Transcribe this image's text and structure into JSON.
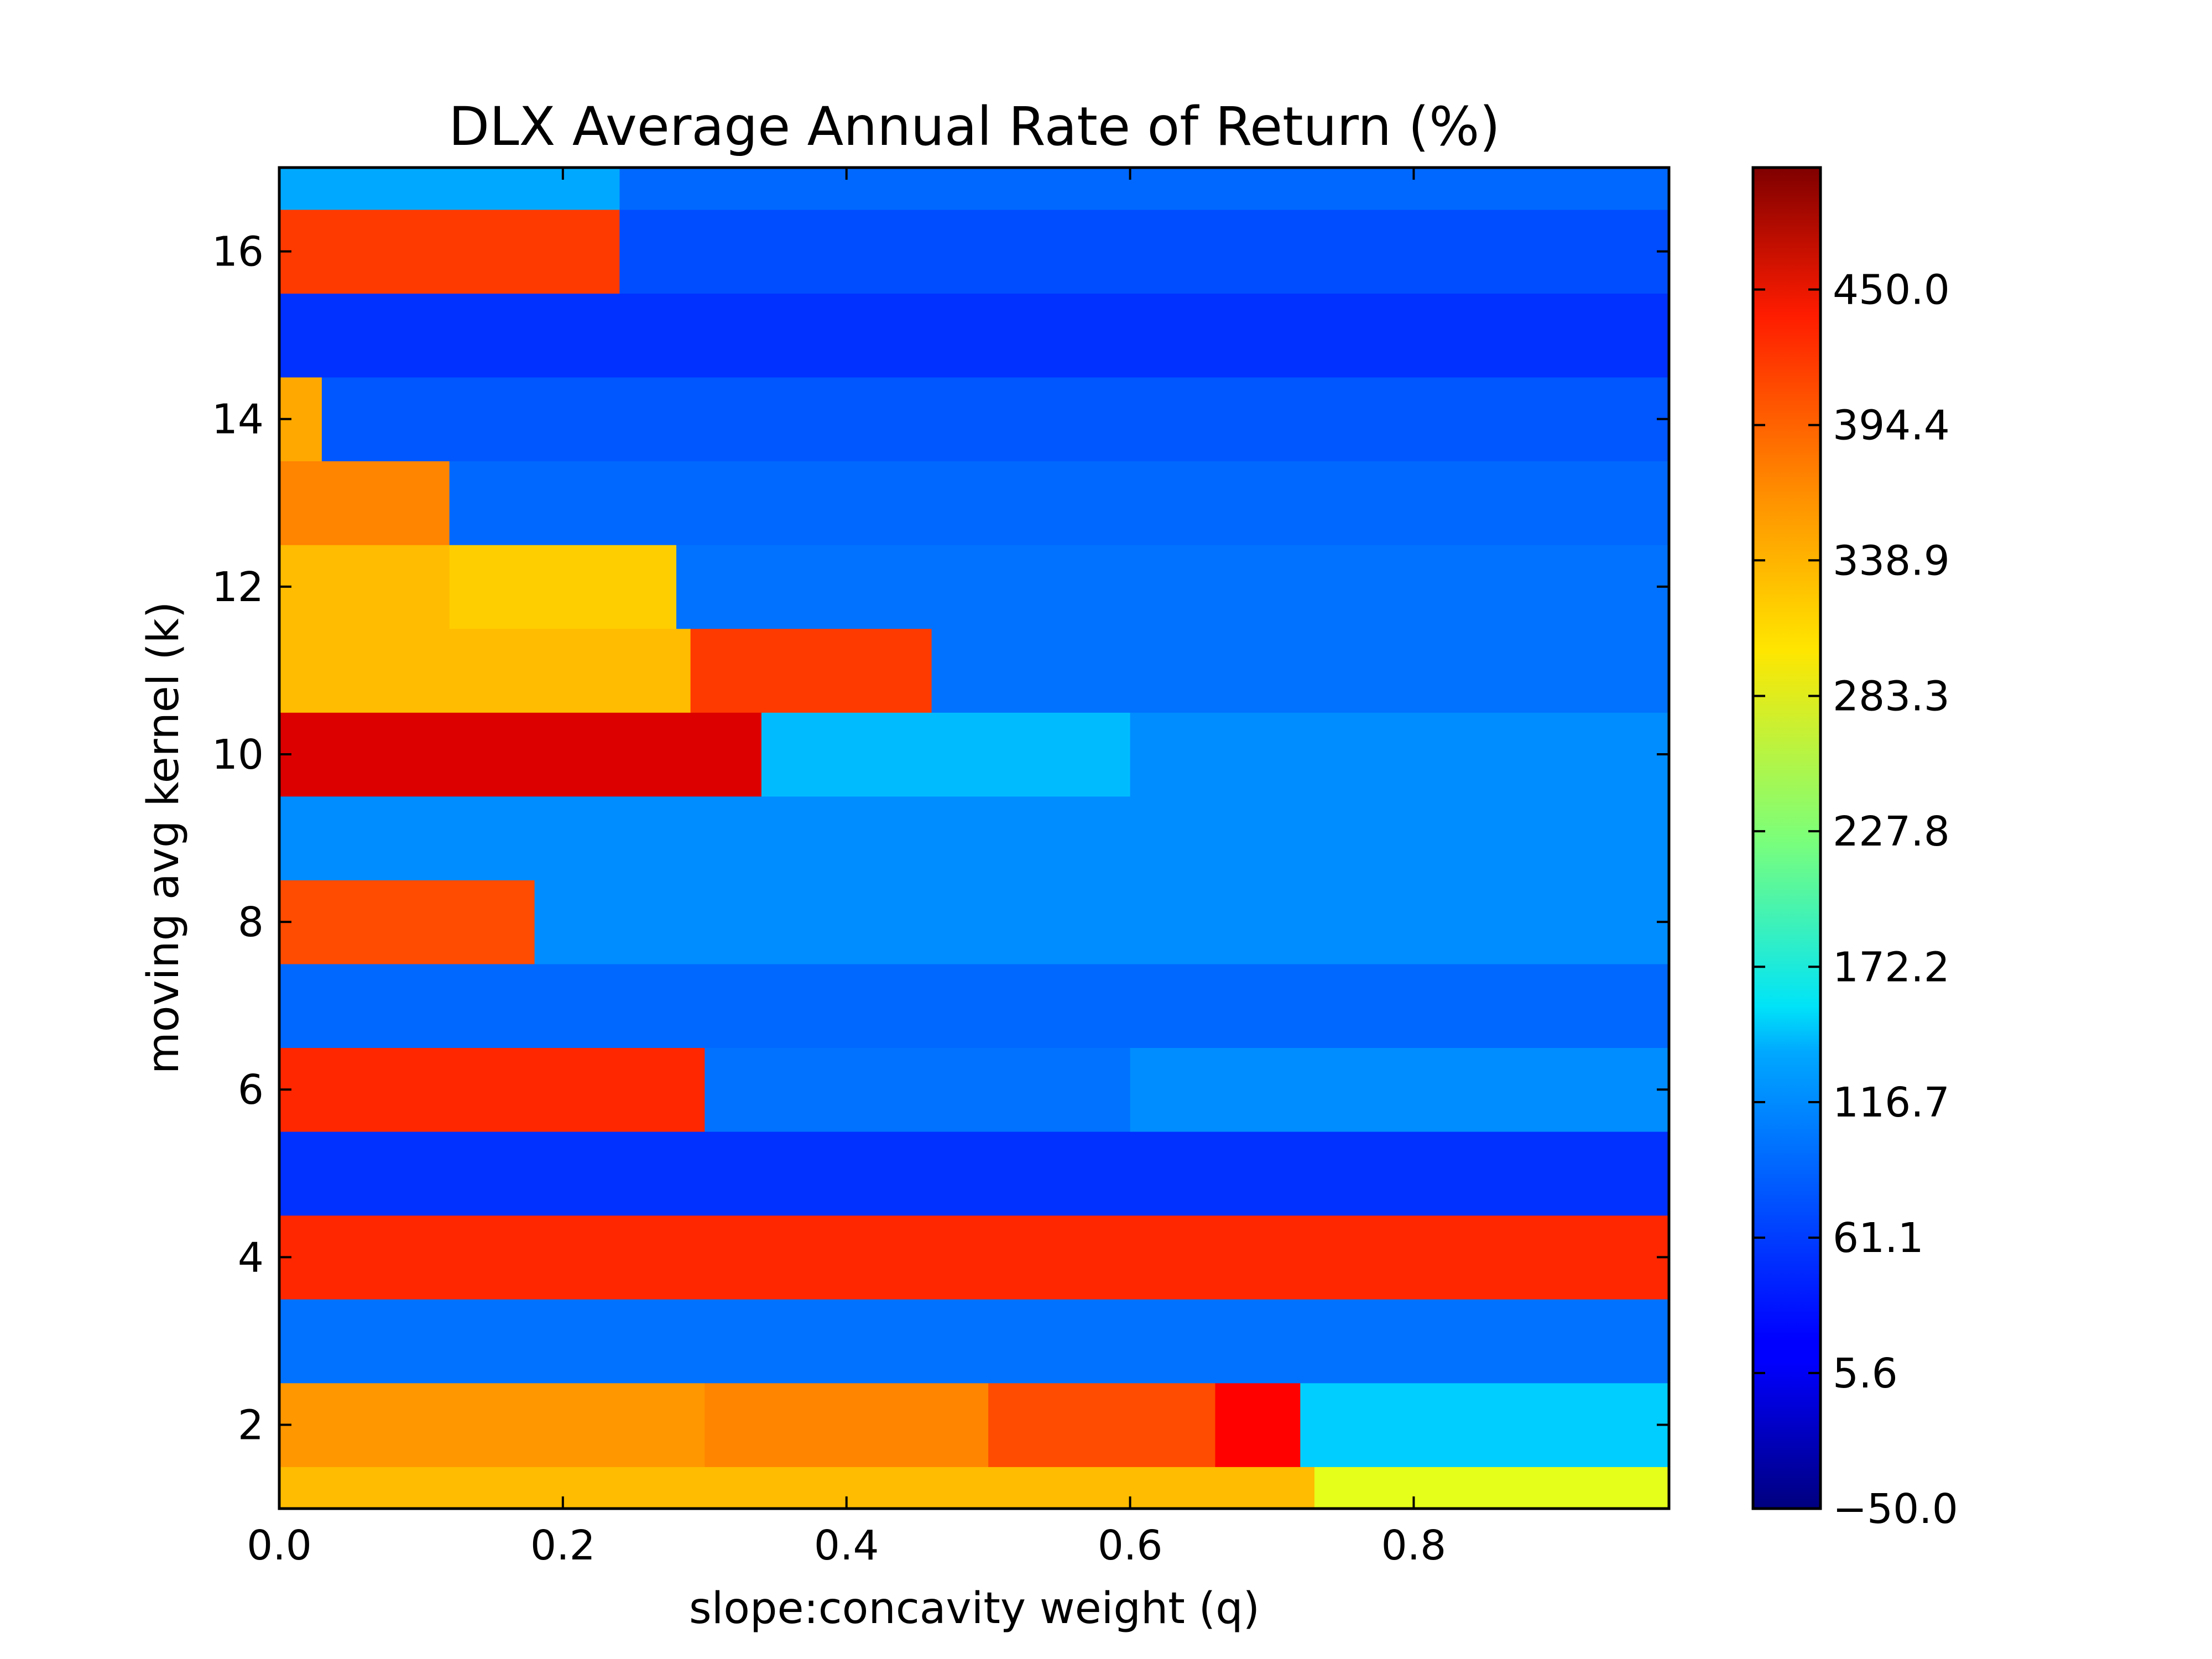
{
  "chart_data": {
    "type": "heatmap",
    "title": "DLX Average Annual Rate of Return (%)",
    "xlabel": "slope:concavity weight (q)",
    "ylabel": "moving avg kernel (k)",
    "xlim": [
      0.0,
      0.98
    ],
    "ylim": [
      1,
      17
    ],
    "x_ticks": [
      0.0,
      0.2,
      0.4,
      0.6,
      0.8
    ],
    "x_tick_labels": [
      "0.0",
      "0.2",
      "0.4",
      "0.6",
      "0.8"
    ],
    "y_ticks": [
      2,
      4,
      6,
      8,
      10,
      12,
      14,
      16
    ],
    "y_tick_labels": [
      "2",
      "4",
      "6",
      "8",
      "10",
      "12",
      "14",
      "16"
    ],
    "colorbar": {
      "colormap": "jet",
      "range": [
        -50.0,
        500.0
      ],
      "ticks": [
        -50.0,
        5.6,
        61.1,
        116.7,
        172.2,
        227.8,
        283.3,
        338.9,
        394.4,
        450.0
      ],
      "tick_labels": [
        "−50.0",
        "5.6",
        "61.1",
        "116.7",
        "172.2",
        "227.8",
        "283.3",
        "338.9",
        "394.4",
        "450.0"
      ]
    },
    "grid": false,
    "rows": [
      {
        "k": 1,
        "segments": [
          {
            "q_end": 0.73,
            "value": 330
          },
          {
            "q_end": 0.98,
            "value": 280
          }
        ]
      },
      {
        "k": 2,
        "segments": [
          {
            "q_end": 0.3,
            "value": 350
          },
          {
            "q_end": 0.5,
            "value": 360
          },
          {
            "q_end": 0.66,
            "value": 390
          },
          {
            "q_end": 0.72,
            "value": 430
          },
          {
            "q_end": 0.98,
            "value": 130
          }
        ]
      },
      {
        "k": 3,
        "segments": [
          {
            "q_end": 0.98,
            "value": 80
          }
        ]
      },
      {
        "k": 4,
        "segments": [
          {
            "q_end": 0.98,
            "value": 410
          }
        ]
      },
      {
        "k": 5,
        "segments": [
          {
            "q_end": 0.98,
            "value": 45
          }
        ]
      },
      {
        "k": 6,
        "segments": [
          {
            "q_end": 0.3,
            "value": 410
          },
          {
            "q_end": 0.6,
            "value": 80
          },
          {
            "q_end": 0.98,
            "value": 95
          }
        ]
      },
      {
        "k": 7,
        "segments": [
          {
            "q_end": 0.98,
            "value": 75
          }
        ]
      },
      {
        "k": 8,
        "segments": [
          {
            "q_end": 0.18,
            "value": 390
          },
          {
            "q_end": 0.98,
            "value": 95
          }
        ]
      },
      {
        "k": 9,
        "segments": [
          {
            "q_end": 0.98,
            "value": 95
          }
        ]
      },
      {
        "k": 10,
        "segments": [
          {
            "q_end": 0.34,
            "value": 450
          },
          {
            "q_end": 0.6,
            "value": 120
          },
          {
            "q_end": 0.98,
            "value": 95
          }
        ]
      },
      {
        "k": 11,
        "segments": [
          {
            "q_end": 0.29,
            "value": 330
          },
          {
            "q_end": 0.46,
            "value": 400
          },
          {
            "q_end": 0.98,
            "value": 80
          }
        ]
      },
      {
        "k": 12,
        "segments": [
          {
            "q_end": 0.12,
            "value": 330
          },
          {
            "q_end": 0.28,
            "value": 320
          },
          {
            "q_end": 0.98,
            "value": 80
          }
        ]
      },
      {
        "k": 13,
        "segments": [
          {
            "q_end": 0.12,
            "value": 360
          },
          {
            "q_end": 0.98,
            "value": 75
          }
        ]
      },
      {
        "k": 14,
        "segments": [
          {
            "q_end": 0.03,
            "value": 340
          },
          {
            "q_end": 0.98,
            "value": 65
          }
        ]
      },
      {
        "k": 15,
        "segments": [
          {
            "q_end": 0.98,
            "value": 45
          }
        ]
      },
      {
        "k": 16,
        "segments": [
          {
            "q_end": 0.24,
            "value": 400
          },
          {
            "q_end": 0.98,
            "value": 60
          }
        ]
      },
      {
        "k": 17,
        "segments": [
          {
            "q_end": 0.24,
            "value": 110
          },
          {
            "q_end": 0.98,
            "value": 75
          }
        ]
      }
    ]
  }
}
